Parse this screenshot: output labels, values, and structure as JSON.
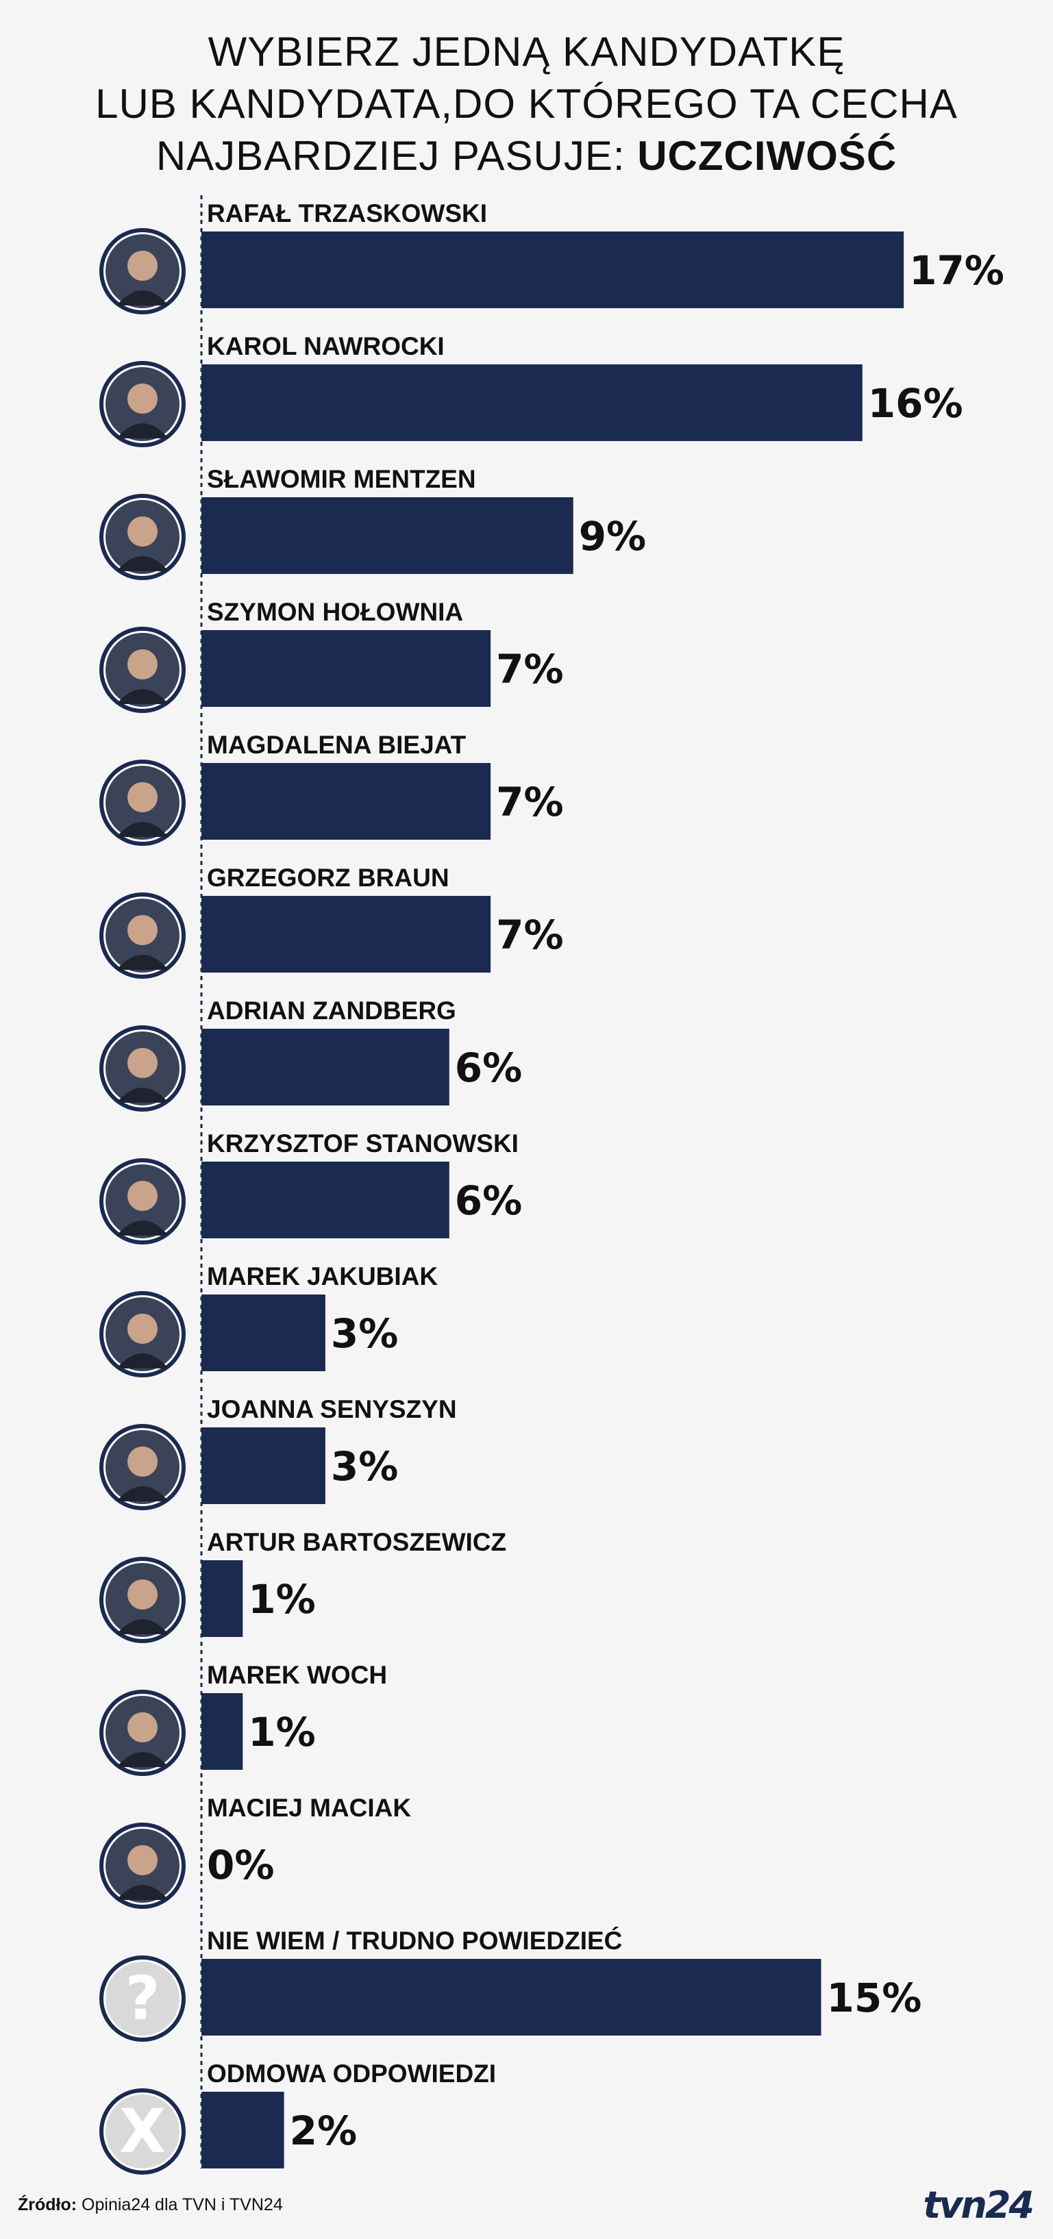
{
  "title": {
    "line1": "WYBIERZ JEDNĄ KANDYDATKĘ",
    "line2": "LUB KANDYDATA,DO KTÓREGO TA CECHA",
    "line3_prefix": "NAJBARDZIEJ PASUJE: ",
    "line3_bold": "UCZCIWOŚĆ"
  },
  "chart_data": {
    "type": "bar",
    "orientation": "horizontal",
    "categories": [
      "RAFAŁ TRZASKOWSKI",
      "KAROL NAWROCKI",
      "SŁAWOMIR MENTZEN",
      "SZYMON HOŁOWNIA",
      "MAGDALENA BIEJAT",
      "GRZEGORZ BRAUN",
      "ADRIAN ZANDBERG",
      "KRZYSZTOF STANOWSKI",
      "MAREK JAKUBIAK",
      "JOANNA SENYSZYN",
      "ARTUR BARTOSZEWICZ",
      "MAREK WOCH",
      "MACIEJ MACIAK",
      "NIE WIEM / TRUDNO POWIEDZIEĆ",
      "ODMOWA ODPOWIEDZI"
    ],
    "values": [
      17,
      16,
      9,
      7,
      7,
      7,
      6,
      6,
      3,
      3,
      1,
      1,
      0,
      15,
      2
    ],
    "value_labels": [
      "17%",
      "16%",
      "9%",
      "7%",
      "7%",
      "7%",
      "6%",
      "6%",
      "3%",
      "3%",
      "1%",
      "1%",
      "0%",
      "15%",
      "2%"
    ],
    "unit": "%",
    "bar_color": "#1b2a50",
    "avatars": [
      "photo",
      "photo",
      "photo",
      "photo",
      "photo",
      "photo",
      "photo",
      "photo",
      "photo",
      "photo",
      "photo",
      "photo",
      "photo",
      "question-mark-icon",
      "x-mark-icon"
    ]
  },
  "footer": {
    "source_label": "Źródło:",
    "source_text": " Opinia24 dla TVN i TVN24",
    "logo": "tvn24"
  }
}
